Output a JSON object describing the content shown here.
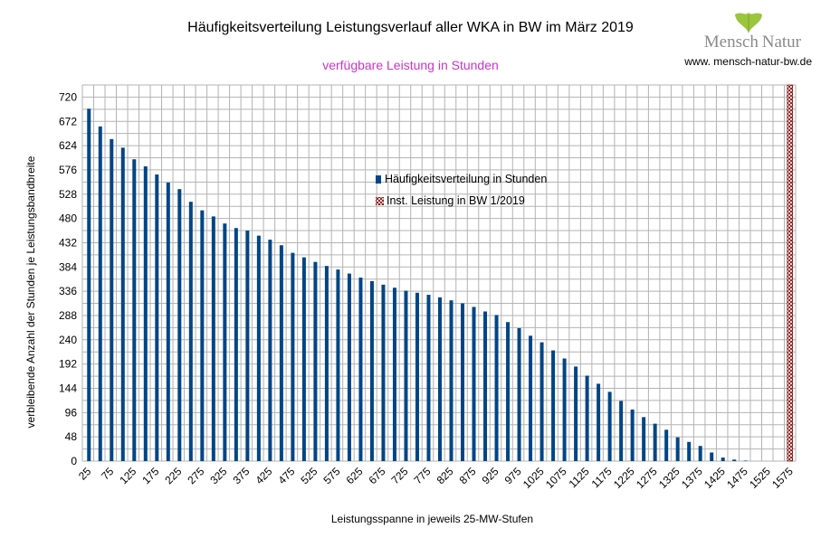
{
  "chart_data": {
    "type": "bar",
    "title": "Häufigkeitsverteilung Leistungsverlauf aller WKA in BW im März 2019",
    "subtitle": "verfügbare Leistung in Stunden",
    "xlabel": "Leistungsspanne in jeweils 25-MW-Stufen",
    "ylabel": "verbleibende Anzahl der Stunden je Leistungsbandbreite",
    "ylim": [
      0,
      744
    ],
    "yticks": [
      0,
      48,
      96,
      144,
      192,
      240,
      288,
      336,
      384,
      432,
      480,
      528,
      576,
      624,
      672,
      720
    ],
    "x": [
      25,
      50,
      75,
      100,
      125,
      150,
      175,
      200,
      225,
      250,
      275,
      300,
      325,
      350,
      375,
      400,
      425,
      450,
      475,
      500,
      525,
      550,
      575,
      600,
      625,
      650,
      675,
      700,
      725,
      750,
      775,
      800,
      825,
      850,
      875,
      900,
      925,
      950,
      975,
      1000,
      1025,
      1050,
      1075,
      1100,
      1125,
      1150,
      1175,
      1200,
      1225,
      1250,
      1275,
      1300,
      1325,
      1350,
      1375,
      1400,
      1425,
      1450,
      1475,
      1500,
      1525,
      1550,
      1575
    ],
    "xtick_labels": [
      "25",
      "75",
      "125",
      "175",
      "225",
      "275",
      "325",
      "375",
      "425",
      "475",
      "525",
      "575",
      "625",
      "675",
      "725",
      "775",
      "825",
      "875",
      "925",
      "975",
      "1025",
      "1075",
      "1125",
      "1175",
      "1225",
      "1275",
      "1325",
      "1375",
      "1425",
      "1475",
      "1525",
      "1575"
    ],
    "series": [
      {
        "name": "Häufigkeitsverteilung in Stunden",
        "color": "#004586",
        "values": [
          697,
          662,
          637,
          620,
          597,
          583,
          567,
          551,
          538,
          513,
          496,
          484,
          470,
          461,
          456,
          446,
          438,
          427,
          412,
          403,
          394,
          386,
          379,
          371,
          363,
          356,
          349,
          343,
          337,
          333,
          329,
          324,
          318,
          312,
          305,
          296,
          289,
          275,
          263,
          248,
          235,
          219,
          203,
          187,
          169,
          153,
          137,
          119,
          102,
          87,
          74,
          62,
          47,
          38,
          30,
          17,
          7,
          3,
          1,
          0,
          0,
          0,
          0
        ]
      },
      {
        "name": "Inst. Leistung in BW 1/2019",
        "color": "#800000",
        "pattern": "cross-hatch",
        "x_position": 1575
      }
    ]
  },
  "logo": {
    "brand_left": "Mensch",
    "brand_right": "Natur",
    "url": "www. mensch-natur-bw.de"
  }
}
